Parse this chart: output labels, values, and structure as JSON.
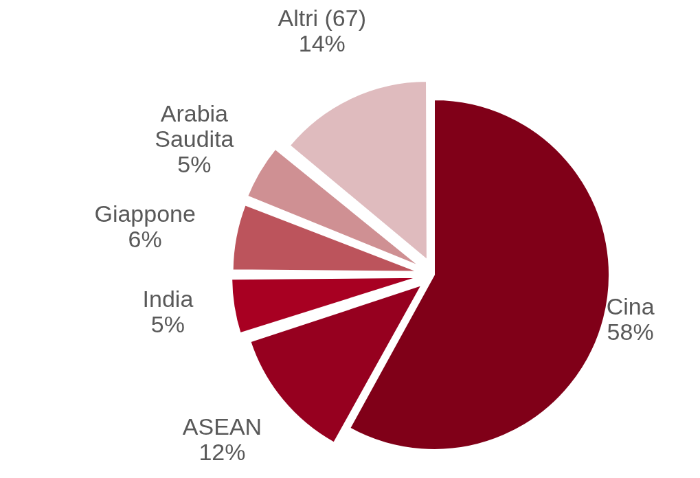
{
  "chart_data": {
    "type": "pie",
    "categories": [
      "Cina",
      "ASEAN",
      "India",
      "Giappone",
      "Arabia Saudita",
      "Altri (67)"
    ],
    "values": [
      58,
      12,
      5,
      6,
      5,
      14
    ],
    "value_labels": [
      "58%",
      "12%",
      "5%",
      "6%",
      "5%",
      "14%"
    ],
    "colors": [
      "#800018",
      "#96001f",
      "#a80022",
      "#bc545c",
      "#cf9093",
      "#dfbbbe"
    ],
    "legend": false
  }
}
